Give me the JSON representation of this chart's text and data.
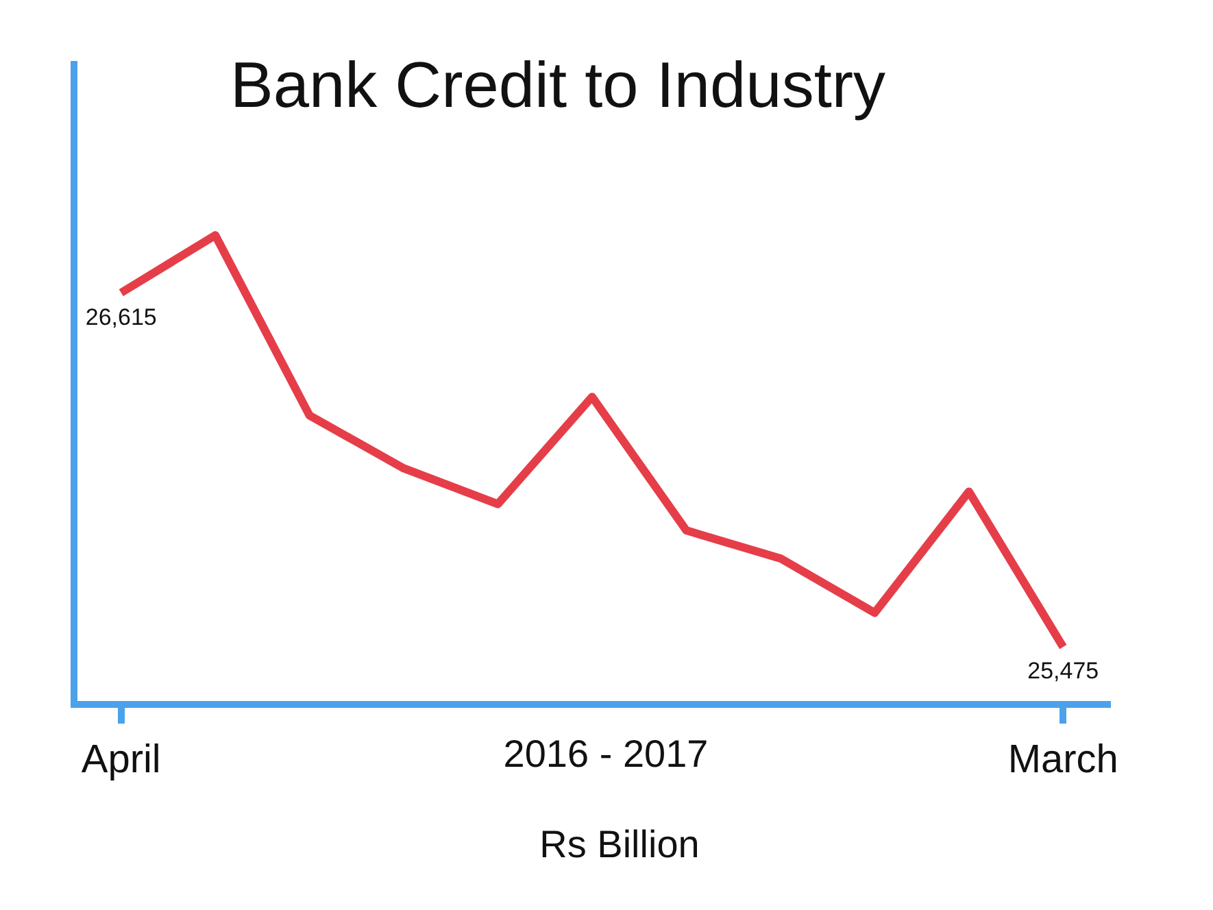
{
  "chart_data": {
    "type": "line",
    "title": "Bank Credit to Industry",
    "xlabel": "2016 - 2017",
    "annotations": [
      "Rs Billion"
    ],
    "categories": [
      "April",
      null,
      null,
      null,
      null,
      null,
      null,
      null,
      null,
      null,
      "March"
    ],
    "values": [
      26615,
      26800,
      26220,
      26050,
      25935,
      26280,
      25850,
      25760,
      25585,
      25975,
      25475
    ],
    "value_labels": [
      "26,615",
      null,
      null,
      null,
      null,
      null,
      null,
      null,
      null,
      null,
      "25,475"
    ],
    "color": "#e53e49",
    "ylim": [
      25290,
      27350
    ],
    "tick_labels": "x",
    "grid": false,
    "legend": false,
    "marker": "none",
    "line_style": "solid"
  }
}
